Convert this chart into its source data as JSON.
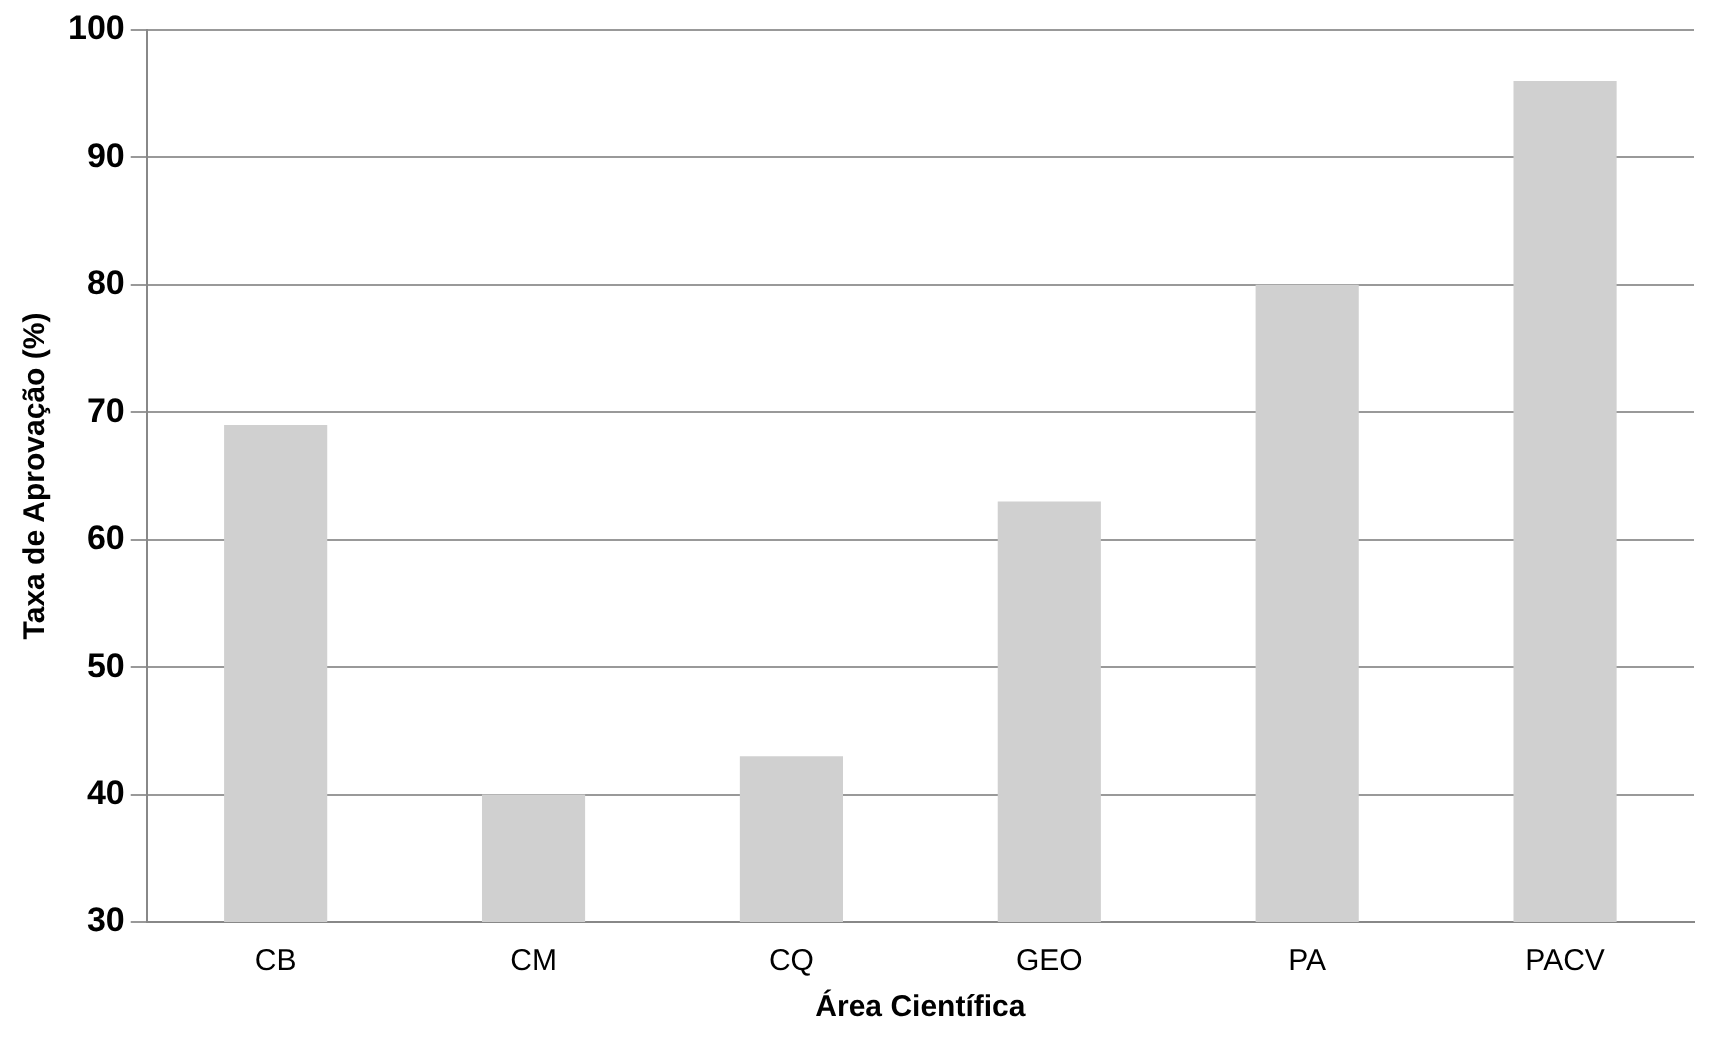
{
  "chart_data": {
    "type": "bar",
    "xlabel": "Área Científica",
    "ylabel": "Taxa de Aprovação (%)",
    "categories": [
      "CB",
      "CM",
      "CQ",
      "GEO",
      "PA",
      "PACV"
    ],
    "values": [
      69,
      40,
      43,
      63,
      80,
      96
    ],
    "color": "#d0d0d0",
    "ylim": [
      30,
      100
    ],
    "yticks": [
      30,
      40,
      50,
      60,
      70,
      80,
      90,
      100
    ],
    "grid": "y"
  }
}
